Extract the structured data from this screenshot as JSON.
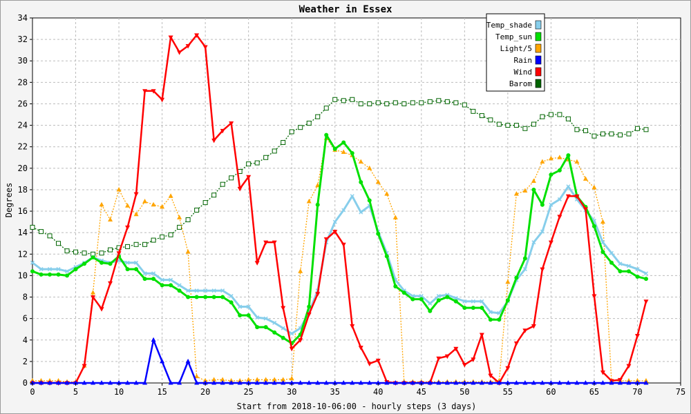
{
  "chart_data": {
    "type": "line",
    "title": "Weather in Essex",
    "xlabel": "Start from 2018-10-06:00 - hourly steps (3 days)",
    "ylabel": "Degrees",
    "xlim": [
      0,
      75
    ],
    "ylim": [
      0,
      34
    ],
    "x_ticks": [
      0,
      5,
      10,
      15,
      20,
      25,
      30,
      35,
      40,
      45,
      50,
      55,
      60,
      65,
      70,
      75
    ],
    "y_ticks": [
      0,
      2,
      4,
      6,
      8,
      10,
      12,
      14,
      16,
      18,
      20,
      22,
      24,
      26,
      28,
      30,
      32,
      34
    ],
    "grid": true,
    "legend_position": "top-right",
    "x": [
      0,
      1,
      2,
      3,
      4,
      5,
      6,
      7,
      8,
      9,
      10,
      11,
      12,
      13,
      14,
      15,
      16,
      17,
      18,
      19,
      20,
      21,
      22,
      23,
      24,
      25,
      26,
      27,
      28,
      29,
      30,
      31,
      32,
      33,
      34,
      35,
      36,
      37,
      38,
      39,
      40,
      41,
      42,
      43,
      44,
      45,
      46,
      47,
      48,
      49,
      50,
      51,
      52,
      53,
      54,
      55,
      56,
      57,
      58,
      59,
      60,
      61,
      62,
      63,
      64,
      65,
      66,
      67,
      68,
      69,
      70,
      71
    ],
    "series": [
      {
        "name": "Temp_shade",
        "color": "#87ceeb",
        "marker": "x",
        "values": [
          11.2,
          10.6,
          10.6,
          10.6,
          10.4,
          10.8,
          11.2,
          11.7,
          11.4,
          11.2,
          11.4,
          11.2,
          11.2,
          10.2,
          10.2,
          9.6,
          9.6,
          9.1,
          8.6,
          8.6,
          8.6,
          8.6,
          8.6,
          8.1,
          7.1,
          7.1,
          6.1,
          6.0,
          5.6,
          5.1,
          4.6,
          5.1,
          6.6,
          8.6,
          13.1,
          15.0,
          16.1,
          17.4,
          15.9,
          16.5,
          14.1,
          12.1,
          9.6,
          8.6,
          8.1,
          8.1,
          7.4,
          8.1,
          8.2,
          7.9,
          7.6,
          7.6,
          7.6,
          6.6,
          6.5,
          7.6,
          9.6,
          10.6,
          13.1,
          14.1,
          16.6,
          17.1,
          18.3,
          17.1,
          16.1,
          15.1,
          13.1,
          12.1,
          11.1,
          10.9,
          10.6,
          10.2
        ]
      },
      {
        "name": "Temp_sun",
        "color": "#00e000",
        "marker": "circle",
        "values": [
          10.4,
          10.1,
          10.1,
          10.1,
          10.0,
          10.6,
          11.1,
          11.7,
          11.2,
          11.1,
          11.8,
          10.6,
          10.6,
          9.7,
          9.7,
          9.1,
          9.1,
          8.6,
          8.0,
          8.0,
          8.0,
          8.0,
          8.0,
          7.5,
          6.3,
          6.3,
          5.2,
          5.2,
          4.7,
          4.2,
          3.7,
          4.5,
          7.1,
          16.6,
          23.1,
          21.8,
          22.4,
          21.4,
          18.7,
          17.0,
          13.9,
          11.8,
          9.0,
          8.4,
          7.8,
          7.8,
          6.7,
          7.7,
          8.0,
          7.6,
          7.0,
          7.0,
          7.0,
          5.9,
          5.9,
          7.7,
          9.8,
          11.6,
          18.0,
          16.6,
          19.4,
          19.8,
          21.2,
          17.4,
          16.4,
          14.6,
          12.2,
          11.2,
          10.4,
          10.4,
          9.9,
          9.7
        ]
      },
      {
        "name": "Light/5",
        "color": "#ffa500",
        "marker": "triangle-up",
        "values": [
          0.2,
          0.2,
          0.2,
          0.2,
          0.1,
          0.1,
          1.6,
          8.4,
          16.6,
          15.2,
          18.0,
          16.5,
          15.7,
          16.9,
          16.6,
          16.4,
          17.4,
          15.4,
          12.2,
          0.6,
          0.2,
          0.3,
          0.3,
          0.2,
          0.2,
          0.3,
          0.3,
          0.3,
          0.3,
          0.3,
          0.4,
          10.4,
          16.9,
          18.4,
          22.8,
          21.7,
          21.5,
          21.2,
          20.6,
          20.0,
          18.7,
          17.6,
          15.4,
          0.1,
          0.1,
          0.1,
          0.1,
          0.1,
          0.1,
          0.1,
          0.1,
          0.1,
          0.1,
          0.1,
          0.2,
          9.4,
          17.6,
          17.9,
          18.8,
          20.6,
          20.9,
          21.0,
          20.8,
          20.6,
          19.0,
          18.2,
          15.0,
          0.2,
          0.2,
          0.2,
          0.2,
          0.2
        ]
      },
      {
        "name": "Rain",
        "color": "#0000ff",
        "marker": "triangle-up",
        "values": [
          0,
          0,
          0,
          0,
          0,
          0,
          0,
          0,
          0,
          0,
          0,
          0,
          0,
          0,
          4.0,
          2.0,
          0,
          0,
          2.0,
          0,
          0,
          0,
          0,
          0,
          0,
          0,
          0,
          0,
          0,
          0,
          0,
          0,
          0,
          0,
          0,
          0,
          0,
          0,
          0,
          0,
          0,
          0,
          0,
          0,
          0,
          0,
          0,
          0,
          0,
          0,
          0,
          0,
          0,
          0,
          0,
          0,
          0,
          0,
          0,
          0,
          0,
          0,
          0,
          0,
          0,
          0,
          0,
          0,
          0,
          0,
          0,
          0
        ]
      },
      {
        "name": "Wind",
        "color": "#ff0000",
        "marker": "triangle-down",
        "values": [
          0,
          0,
          0,
          0,
          0,
          0,
          1.6,
          8.0,
          6.9,
          9.3,
          12.1,
          14.5,
          17.6,
          27.2,
          27.2,
          26.4,
          32.2,
          30.8,
          31.4,
          32.4,
          31.3,
          22.6,
          23.5,
          24.2,
          18.1,
          19.2,
          11.2,
          13.1,
          13.1,
          7.0,
          3.2,
          4.0,
          6.4,
          8.3,
          13.4,
          14.1,
          12.9,
          5.3,
          3.3,
          1.8,
          2.1,
          0.1,
          0,
          0,
          0,
          0,
          0,
          2.3,
          2.5,
          3.2,
          1.7,
          2.2,
          4.5,
          0.7,
          0,
          1.4,
          3.7,
          4.9,
          5.3,
          10.6,
          13.1,
          15.5,
          17.4,
          17.4,
          16.2,
          8.1,
          1.0,
          0.2,
          0.3,
          1.6,
          4.4,
          7.6
        ]
      },
      {
        "name": "Barom",
        "color": "#006400",
        "marker": "square",
        "values": [
          14.5,
          14.1,
          13.7,
          13.0,
          12.3,
          12.2,
          12.1,
          12.0,
          12.1,
          12.4,
          12.6,
          12.7,
          12.9,
          12.9,
          13.3,
          13.6,
          13.8,
          14.5,
          15.2,
          16.1,
          16.8,
          17.5,
          18.5,
          19.1,
          19.7,
          20.4,
          20.5,
          21.0,
          21.6,
          22.4,
          23.4,
          23.8,
          24.2,
          24.8,
          25.6,
          26.4,
          26.3,
          26.4,
          26.0,
          26.0,
          26.1,
          26.0,
          26.1,
          26.0,
          26.1,
          26.1,
          26.2,
          26.3,
          26.2,
          26.1,
          25.9,
          25.3,
          24.9,
          24.5,
          24.1,
          24.0,
          24.0,
          23.7,
          24.1,
          24.8,
          25.0,
          25.0,
          24.6,
          23.6,
          23.5,
          23.0,
          23.2,
          23.2,
          23.1,
          23.2,
          23.7,
          23.6
        ]
      }
    ]
  }
}
